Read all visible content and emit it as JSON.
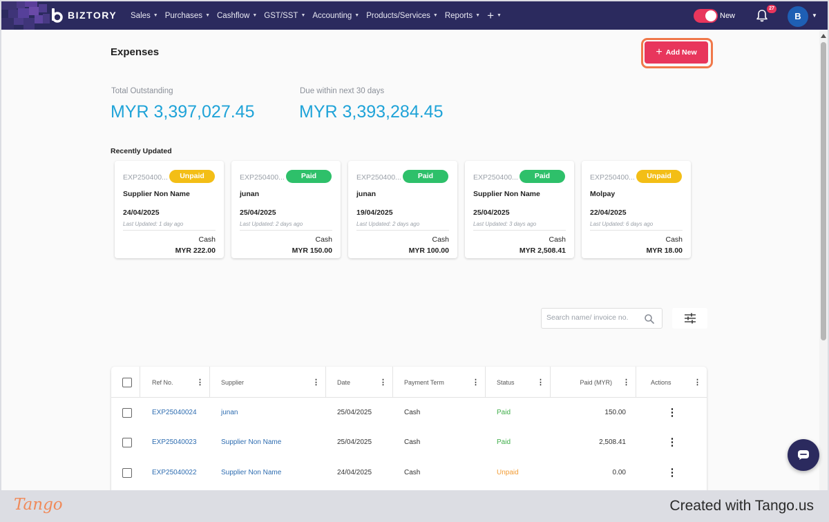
{
  "nav": {
    "brand": "BIZTORY",
    "menu": [
      "Sales",
      "Purchases",
      "Cashflow",
      "GST/SST",
      "Accounting",
      "Products/Services",
      "Reports"
    ],
    "plus": "+",
    "toggle_label": "New",
    "notification_count": "27",
    "avatar_initial": "B",
    "colors": {
      "bar": "#2b2a5e",
      "accent": "#e8365c"
    }
  },
  "page": {
    "title": "Expenses",
    "add_new_label": "Add New"
  },
  "stats": [
    {
      "label": "Total Outstanding",
      "value": "MYR 3,397,027.45"
    },
    {
      "label": "Due within next 30 days",
      "value": "MYR 3,393,284.45"
    }
  ],
  "recent": {
    "title": "Recently Updated",
    "cards": [
      {
        "ref": "EXP250400...",
        "status": "Unpaid",
        "name": "Supplier Non Name",
        "date": "24/04/2025",
        "updated": "Last Updated: 1 day ago",
        "term": "Cash",
        "amount": "MYR 222.00"
      },
      {
        "ref": "EXP250400...",
        "status": "Paid",
        "name": "junan",
        "date": "25/04/2025",
        "updated": "Last Updated: 2 days ago",
        "term": "Cash",
        "amount": "MYR 150.00"
      },
      {
        "ref": "EXP250400...",
        "status": "Paid",
        "name": "junan",
        "date": "19/04/2025",
        "updated": "Last Updated: 2 days ago",
        "term": "Cash",
        "amount": "MYR 100.00"
      },
      {
        "ref": "EXP250400...",
        "status": "Paid",
        "name": "Supplier Non Name",
        "date": "25/04/2025",
        "updated": "Last Updated: 3 days ago",
        "term": "Cash",
        "amount": "MYR 2,508.41"
      },
      {
        "ref": "EXP250400...",
        "status": "Unpaid",
        "name": "Molpay",
        "date": "22/04/2025",
        "updated": "Last Updated: 6 days ago",
        "term": "Cash",
        "amount": "MYR 18.00"
      }
    ]
  },
  "search": {
    "placeholder": "Search name/ invoice no."
  },
  "table": {
    "columns": [
      "Ref No.",
      "Supplier",
      "Date",
      "Payment Term",
      "Status",
      "Paid (MYR)",
      "Actions"
    ],
    "rows": [
      {
        "ref": "EXP25040024",
        "supplier": "junan",
        "date": "25/04/2025",
        "term": "Cash",
        "status": "Paid",
        "paid": "150.00"
      },
      {
        "ref": "EXP25040023",
        "supplier": "Supplier Non Name",
        "date": "25/04/2025",
        "term": "Cash",
        "status": "Paid",
        "paid": "2,508.41"
      },
      {
        "ref": "EXP25040022",
        "supplier": "Supplier Non Name",
        "date": "24/04/2025",
        "term": "Cash",
        "status": "Unpaid",
        "paid": "0.00"
      }
    ]
  },
  "footer": {
    "logo": "Tango",
    "credit": "Created with Tango.us"
  }
}
